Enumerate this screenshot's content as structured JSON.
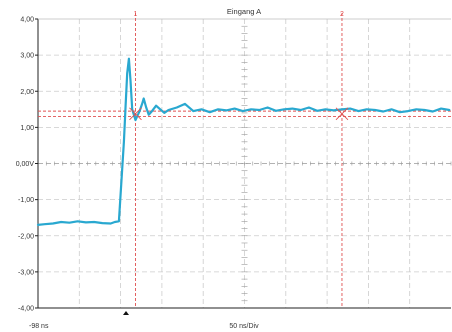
{
  "chart_data": {
    "type": "line",
    "title": "Eingang A",
    "y_unit": "V",
    "x_unit": "ns",
    "ylim": [
      -4.0,
      4.0
    ],
    "xlim": [
      -98,
      402
    ],
    "y_ticks": [
      4.0,
      3.0,
      2.0,
      1.0,
      0.0,
      -1.0,
      -2.0,
      -3.0,
      -4.0
    ],
    "y_tick_labels": [
      "4,00",
      "3,00",
      "2,00",
      "1,00",
      "0,00V",
      "-1,00",
      "-2,00",
      "-3,00",
      "-4,00"
    ],
    "x_start_label": "-98 ns",
    "x_scale_label": "50 ns/Div",
    "grid": true,
    "colors": {
      "trace": "#29a8d0",
      "cursor": "#e05050",
      "grid": "#cccccc",
      "axis": "#222222"
    },
    "cursors": {
      "vertical": [
        {
          "label": "1",
          "x": 20
        },
        {
          "label": "2",
          "x": 270
        }
      ],
      "horizontal": [
        1.45,
        1.3
      ]
    },
    "series": [
      {
        "x": [
          -98,
          -90,
          -80,
          -70,
          -60,
          -50,
          -40,
          -30,
          -20,
          -10,
          -5,
          0,
          3,
          6,
          8,
          10,
          12,
          14,
          16,
          20,
          25,
          28,
          30,
          33,
          36,
          40,
          45,
          50,
          55,
          60,
          70,
          80,
          90,
          100,
          110,
          120,
          130,
          140,
          150,
          160,
          170,
          180,
          190,
          200,
          210,
          220,
          230,
          240,
          250,
          260,
          270,
          280,
          290,
          300,
          310,
          320,
          330,
          340,
          350,
          360,
          370,
          380,
          390,
          400
        ],
        "y": [
          -1.7,
          -1.68,
          -1.66,
          -1.62,
          -1.64,
          -1.6,
          -1.63,
          -1.62,
          -1.65,
          -1.66,
          -1.62,
          -1.6,
          -0.5,
          0.6,
          1.6,
          2.5,
          2.9,
          2.3,
          1.5,
          1.2,
          1.45,
          1.65,
          1.8,
          1.55,
          1.35,
          1.45,
          1.6,
          1.5,
          1.4,
          1.48,
          1.55,
          1.65,
          1.45,
          1.5,
          1.42,
          1.5,
          1.47,
          1.52,
          1.45,
          1.5,
          1.48,
          1.55,
          1.46,
          1.5,
          1.52,
          1.48,
          1.55,
          1.46,
          1.5,
          1.47,
          1.5,
          1.52,
          1.45,
          1.5,
          1.48,
          1.44,
          1.5,
          1.42,
          1.45,
          1.5,
          1.48,
          1.44,
          1.52,
          1.48
        ]
      }
    ]
  }
}
